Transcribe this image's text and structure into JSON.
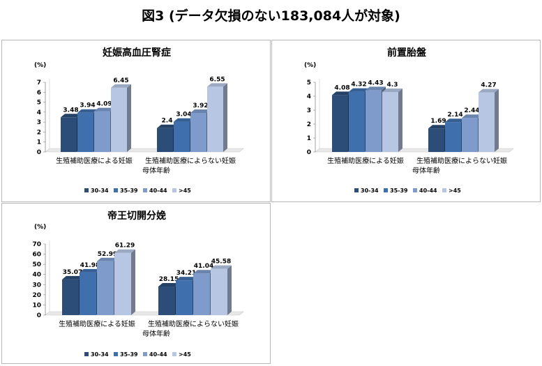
{
  "page": {
    "title": "図3 (データ欠損のない183,084人が対象)"
  },
  "chart_data": [
    {
      "type": "bar",
      "title": "妊娠高血圧腎症",
      "unit_label": "(%)",
      "xlabel": "母体年齢",
      "categories": [
        "生殖補助医療による妊娠",
        "生殖補助医療によらない妊娠"
      ],
      "series": [
        {
          "name": "30-34",
          "color": "#2c4d78",
          "values": [
            3.48,
            2.4
          ]
        },
        {
          "name": "35-39",
          "color": "#3f70ad",
          "values": [
            3.94,
            3.04
          ]
        },
        {
          "name": "40-44",
          "color": "#7e9bcc",
          "values": [
            4.09,
            3.92
          ]
        },
        {
          "name": ">45",
          "color": "#b6c6e3",
          "values": [
            6.45,
            6.55
          ]
        }
      ],
      "value_labels": [
        [
          "3.48",
          "2.4"
        ],
        [
          "3.94",
          "3.04"
        ],
        [
          "4.09",
          "3.92"
        ],
        [
          "6.45",
          "6.55"
        ]
      ],
      "ylim": [
        0,
        7
      ],
      "yticks": [
        "0",
        "1",
        "2",
        "3",
        "4",
        "5",
        "6",
        "7"
      ],
      "legend": "bottom",
      "grid": false
    },
    {
      "type": "bar",
      "title": "前置胎盤",
      "unit_label": "(%)",
      "xlabel": "母体年齢",
      "categories": [
        "生殖補助医療による妊娠",
        "生殖補助医療によらない妊娠"
      ],
      "series": [
        {
          "name": "30-34",
          "color": "#2c4d78",
          "values": [
            4.08,
            1.69
          ]
        },
        {
          "name": "35-39",
          "color": "#3f70ad",
          "values": [
            4.32,
            2.14
          ]
        },
        {
          "name": "40-44",
          "color": "#7e9bcc",
          "values": [
            4.43,
            2.44
          ]
        },
        {
          "name": ">45",
          "color": "#b6c6e3",
          "values": [
            4.3,
            4.27
          ]
        }
      ],
      "value_labels": [
        [
          "4.08",
          "1.69"
        ],
        [
          "4.32",
          "2.14"
        ],
        [
          "4.43",
          "2.44"
        ],
        [
          "4.3",
          "4.27"
        ]
      ],
      "ylim": [
        0,
        5
      ],
      "yticks": [
        "0",
        "1",
        "2",
        "3",
        "4",
        "5"
      ],
      "legend": "bottom",
      "grid": false
    },
    {
      "type": "bar",
      "title": "帝王切開分娩",
      "unit_label": "(%)",
      "xlabel": "母体年齢",
      "categories": [
        "生殖補助医療による妊娠",
        "生殖補助医療によらない妊娠"
      ],
      "series": [
        {
          "name": "30-34",
          "color": "#2c4d78",
          "values": [
            35.07,
            28.15
          ]
        },
        {
          "name": "35-39",
          "color": "#3f70ad",
          "values": [
            41.98,
            34.21
          ]
        },
        {
          "name": "40-44",
          "color": "#7e9bcc",
          "values": [
            52.99,
            41.04
          ]
        },
        {
          "name": ">45",
          "color": "#b6c6e3",
          "values": [
            61.29,
            45.58
          ]
        }
      ],
      "value_labels": [
        [
          "35.07",
          "28.15"
        ],
        [
          "41.98",
          "34.21"
        ],
        [
          "52.99",
          "41.04"
        ],
        [
          "61.29",
          "45.58"
        ]
      ],
      "ylim": [
        0,
        70
      ],
      "yticks": [
        "0",
        "10",
        "20",
        "30",
        "40",
        "50",
        "60",
        "70"
      ],
      "legend": "bottom",
      "grid": false
    }
  ]
}
